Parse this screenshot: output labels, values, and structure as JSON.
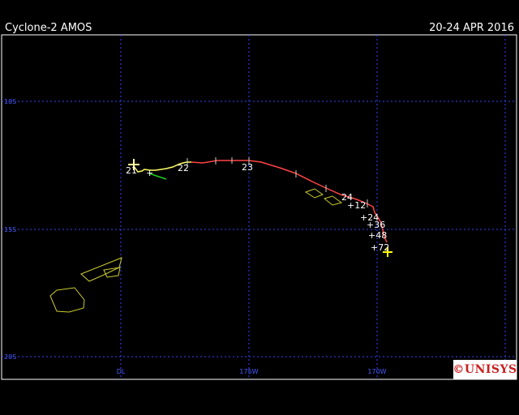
{
  "header": {
    "storm_name": "Cyclone-2 AMOS",
    "date_range": "20-24 APR 2016"
  },
  "map": {
    "lat_labels": [
      "10S",
      "15S",
      "20S"
    ],
    "lon_labels": [
      "DL",
      "175W",
      "170W"
    ],
    "grid_color": "#3344ff",
    "coast_color": "#cccc33",
    "track_colors": {
      "depression": "#22cc22",
      "tropical_storm": "#ffff66",
      "cyclone": "#ff4444",
      "forecast": "#ffffff"
    }
  },
  "track": {
    "day_labels": [
      "21",
      "22",
      "23",
      "24"
    ],
    "forecast_labels": [
      "+12",
      "+24",
      "+36",
      "+48",
      "+72"
    ],
    "marker_glyph": "+"
  },
  "logo": {
    "text": "©UNISYS",
    "color": "#c81e1e"
  }
}
